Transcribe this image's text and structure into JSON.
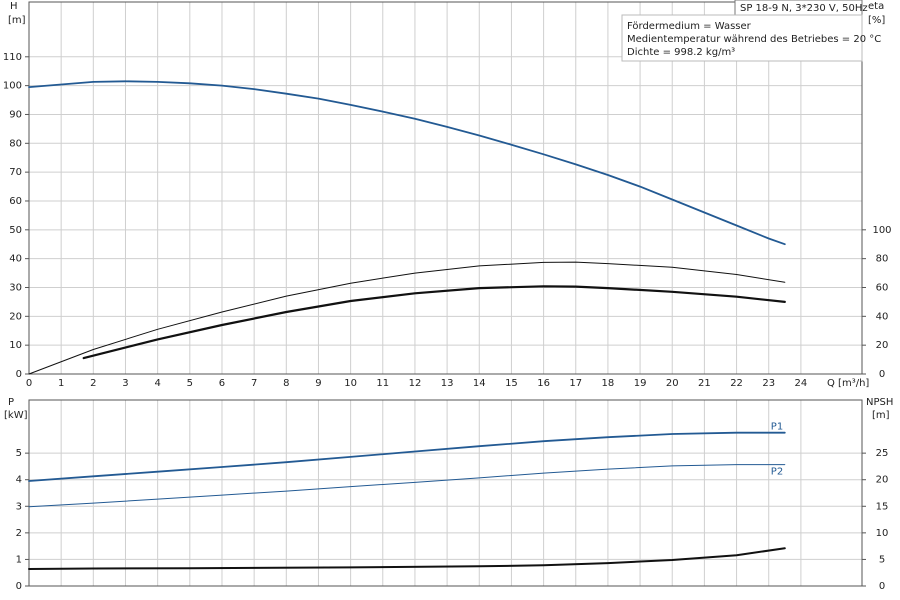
{
  "chart_data": [
    {
      "type": "line",
      "ylabel": "H",
      "yunit": "[m]",
      "y2label": "eta",
      "y2unit": "[%]",
      "xlabel": "Q [m³/h]",
      "title": "SP 18-9 N, 3*230 V, 50Hz",
      "info": [
        "Fördermedium = Wasser",
        "Medientemperatur während des Betriebes = 20 °C",
        "Dichte = 998.2 kg/m³"
      ],
      "xlim": [
        0,
        25.9
      ],
      "xticks": [
        0,
        1,
        2,
        3,
        4,
        5,
        6,
        7,
        8,
        9,
        10,
        11,
        12,
        13,
        14,
        15,
        16,
        17,
        18,
        19,
        20,
        21,
        22,
        23,
        24
      ],
      "ylim": [
        0,
        129
      ],
      "yticks": [
        0,
        10,
        20,
        30,
        40,
        50,
        60,
        70,
        80,
        90,
        100,
        110
      ],
      "y2lim": [
        0,
        258
      ],
      "y2ticks": [
        0,
        20,
        40,
        60,
        80,
        100
      ],
      "grid": true,
      "series": [
        {
          "color": "#235a93",
          "linewidth": 1.8,
          "x": [
            0,
            2,
            3,
            4,
            5,
            6,
            7,
            8,
            9,
            10,
            11,
            12,
            13,
            14,
            15,
            16,
            17,
            18,
            19,
            20,
            21,
            22,
            23,
            23.5
          ],
          "values": [
            99.5,
            101.3,
            101.5,
            101.3,
            100.8,
            100,
            98.8,
            97.2,
            95.5,
            93.3,
            91,
            88.5,
            85.7,
            82.7,
            79.5,
            76.2,
            72.7,
            69,
            65,
            60.5,
            56,
            51.5,
            47,
            45
          ]
        },
        {
          "color": "#111111",
          "linewidth": 1,
          "axis": "y2",
          "x": [
            0,
            2,
            4,
            6,
            8,
            10,
            12,
            14,
            16,
            17,
            18,
            20,
            22,
            23.5
          ],
          "values": [
            0,
            17,
            31,
            43,
            54,
            63,
            70,
            75,
            77.4,
            77.6,
            76.6,
            74,
            69,
            63.6
          ]
        },
        {
          "color": "#111111",
          "linewidth": 2.2,
          "axis": "y2",
          "x": [
            1.7,
            4,
            6,
            8,
            10,
            12,
            14,
            16,
            17,
            18,
            20,
            22,
            23.5
          ],
          "values": [
            11,
            24,
            34,
            43,
            50.6,
            56,
            59.6,
            60.8,
            60.6,
            59.6,
            57,
            53.6,
            50
          ]
        }
      ]
    },
    {
      "type": "line",
      "ylabel": "P",
      "yunit": "[kW]",
      "y2label": "NPSH",
      "y2unit": "[m]",
      "xlim": [
        0,
        25.9
      ],
      "ylim": [
        0,
        7
      ],
      "yticks": [
        0,
        1,
        2,
        3,
        4,
        5
      ],
      "y2lim": [
        0,
        35
      ],
      "y2ticks": [
        0,
        5,
        10,
        15,
        20,
        25
      ],
      "grid": true,
      "series": [
        {
          "name": "P1",
          "color": "#235a93",
          "linewidth": 1.8,
          "x": [
            0,
            2,
            4,
            6,
            8,
            10,
            12,
            14,
            16,
            18,
            20,
            22,
            23.5
          ],
          "values": [
            3.95,
            4.13,
            4.3,
            4.48,
            4.66,
            4.86,
            5.06,
            5.26,
            5.45,
            5.6,
            5.72,
            5.77,
            5.77
          ]
        },
        {
          "name": "P2",
          "color": "#235a93",
          "linewidth": 1,
          "x": [
            0,
            2,
            4,
            6,
            8,
            10,
            12,
            14,
            16,
            18,
            20,
            22,
            23.5
          ],
          "values": [
            2.98,
            3.12,
            3.27,
            3.42,
            3.57,
            3.74,
            3.9,
            4.07,
            4.25,
            4.4,
            4.52,
            4.57,
            4.57
          ]
        },
        {
          "color": "#111111",
          "linewidth": 2,
          "axis": "y2",
          "x": [
            0,
            2,
            5,
            10,
            14,
            16,
            18,
            20,
            22,
            23.5
          ],
          "values": [
            3.2,
            3.3,
            3.35,
            3.5,
            3.7,
            3.9,
            4.3,
            4.9,
            5.8,
            7.1
          ]
        }
      ]
    }
  ]
}
